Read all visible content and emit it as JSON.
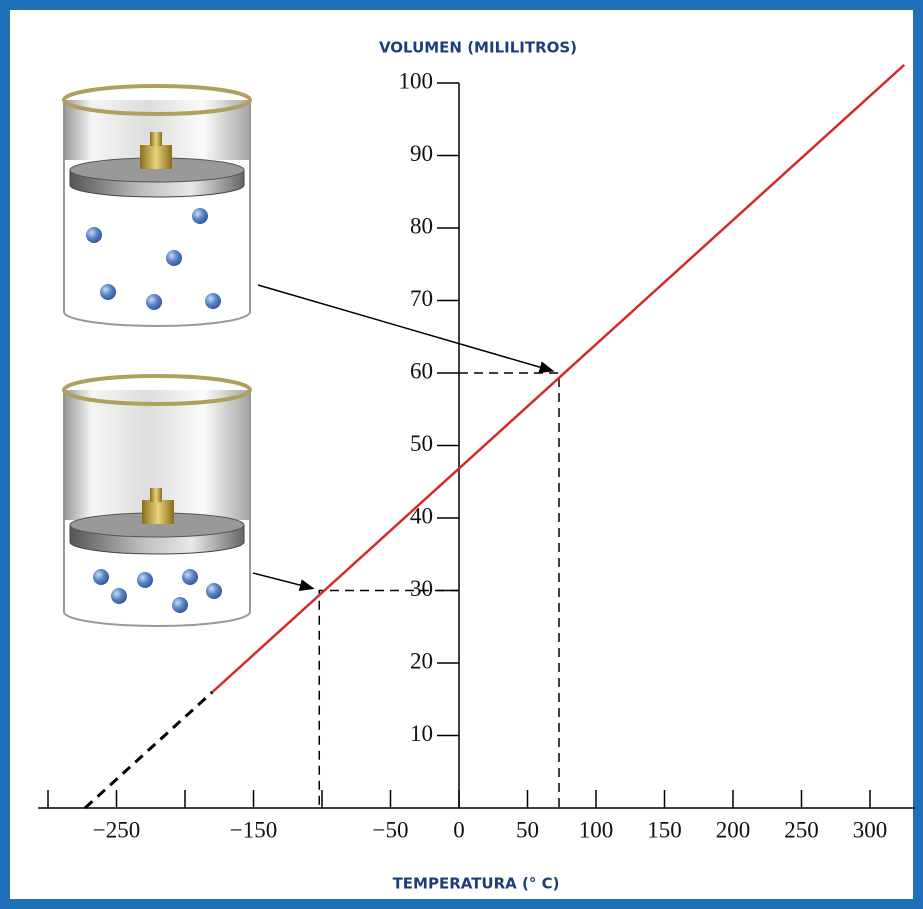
{
  "chart_data": {
    "type": "line",
    "title": "VOLUMEN (MILILITROS)",
    "x_label": "TEMPERATURA (° C)",
    "xlim": [
      -313,
      333
    ],
    "ylim": [
      0,
      104
    ],
    "xticks": [
      {
        "value": -250,
        "label": "−250"
      },
      {
        "value": -150,
        "label": "−150"
      },
      {
        "value": -50,
        "label": "−50"
      },
      0,
      50,
      100,
      150,
      200,
      250,
      300
    ],
    "x_unlabeled_ticks": [
      -300,
      -200,
      -100
    ],
    "yticks": [
      10,
      20,
      30,
      40,
      50,
      60,
      70,
      80,
      90,
      100
    ],
    "line": {
      "x": [
        -180,
        325
      ],
      "values": [
        16,
        102.5
      ],
      "color": "#d42a2a"
    },
    "dashed_line": {
      "x": [
        -273,
        -180
      ],
      "values": [
        0,
        16
      ],
      "color": "#000000"
    },
    "points": [
      {
        "x": -102,
        "y": 30
      },
      {
        "x": 73,
        "y": 60
      }
    ]
  }
}
